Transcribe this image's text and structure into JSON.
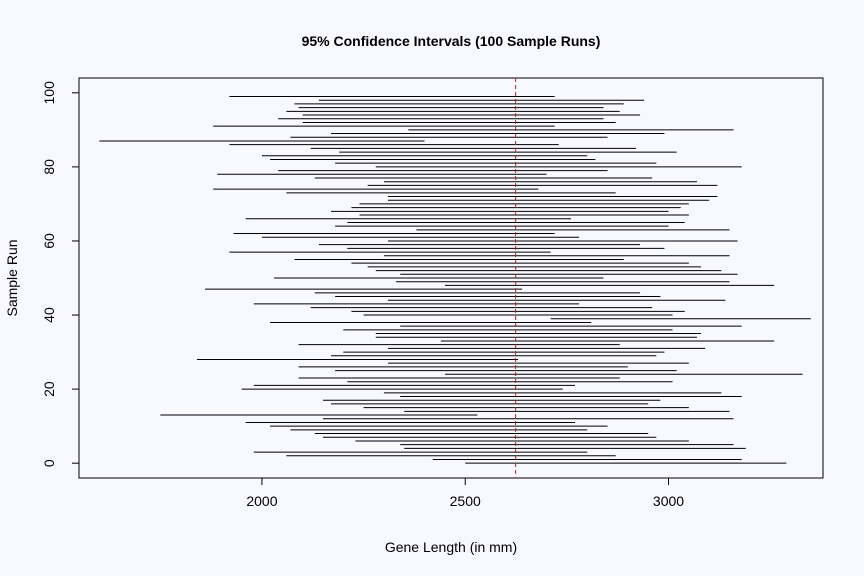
{
  "chart_data": {
    "type": "interval",
    "title": "95% Confidence Intervals (100 Sample Runs)",
    "xlabel": "Gene Length (in mm)",
    "ylabel": "Sample Run",
    "xlim": [
      1550,
      3380
    ],
    "ylim": [
      -4,
      104
    ],
    "xticks": [
      2000,
      2500,
      3000
    ],
    "yticks": [
      0,
      20,
      40,
      60,
      80,
      100
    ],
    "reference_line": {
      "x": 2624,
      "style": "dashed"
    },
    "grid": false,
    "colors": {
      "interval": "#000000",
      "reference": "#b22222",
      "background": "#f8f8ff"
    },
    "intervals": [
      [
        2500,
        3290
      ],
      [
        2420,
        3180
      ],
      [
        2060,
        2870
      ],
      [
        1980,
        2800
      ],
      [
        2350,
        3190
      ],
      [
        2340,
        3160
      ],
      [
        2230,
        3050
      ],
      [
        2150,
        2970
      ],
      [
        2130,
        2950
      ],
      [
        2070,
        2800
      ],
      [
        2020,
        2850
      ],
      [
        1960,
        2770
      ],
      [
        2150,
        3160
      ],
      [
        1750,
        2530
      ],
      [
        2350,
        3150
      ],
      [
        2250,
        3050
      ],
      [
        2170,
        2950
      ],
      [
        2150,
        2980
      ],
      [
        2340,
        3180
      ],
      [
        2300,
        3130
      ],
      [
        1950,
        2740
      ],
      [
        1980,
        2770
      ],
      [
        2210,
        3010
      ],
      [
        2090,
        2880
      ],
      [
        2450,
        3330
      ],
      [
        2180,
        3020
      ],
      [
        2090,
        2900
      ],
      [
        2310,
        3050
      ],
      [
        1840,
        2630
      ],
      [
        2170,
        2970
      ],
      [
        2200,
        2990
      ],
      [
        2310,
        3090
      ],
      [
        2090,
        2880
      ],
      [
        2440,
        3260
      ],
      [
        2280,
        3070
      ],
      [
        2280,
        3080
      ],
      [
        2200,
        3010
      ],
      [
        2340,
        3180
      ],
      [
        2020,
        2810
      ],
      [
        2710,
        3350
      ],
      [
        2250,
        3010
      ],
      [
        2220,
        3040
      ],
      [
        2120,
        2960
      ],
      [
        1980,
        2780
      ],
      [
        2310,
        3140
      ],
      [
        2180,
        2980
      ],
      [
        2130,
        2930
      ],
      [
        1860,
        2640
      ],
      [
        2450,
        3260
      ],
      [
        2330,
        3150
      ],
      [
        2030,
        2840
      ],
      [
        2340,
        3170
      ],
      [
        2280,
        3130
      ],
      [
        2260,
        3080
      ],
      [
        2220,
        3050
      ],
      [
        2080,
        2890
      ],
      [
        2300,
        3150
      ],
      [
        1920,
        2710
      ],
      [
        2210,
        2990
      ],
      [
        2140,
        2930
      ],
      [
        2310,
        3170
      ],
      [
        2000,
        2780
      ],
      [
        1930,
        2720
      ],
      [
        2380,
        3150
      ],
      [
        2180,
        3000
      ],
      [
        2210,
        3040
      ],
      [
        1960,
        2760
      ],
      [
        2240,
        3050
      ],
      [
        2170,
        3000
      ],
      [
        2220,
        3030
      ],
      [
        2240,
        3050
      ],
      [
        2310,
        3100
      ],
      [
        2310,
        3120
      ],
      [
        2060,
        2870
      ],
      [
        1880,
        2680
      ],
      [
        2260,
        3120
      ],
      [
        2300,
        3070
      ],
      [
        2130,
        2960
      ],
      [
        1890,
        2700
      ],
      [
        2040,
        2850
      ],
      [
        2280,
        3180
      ],
      [
        2180,
        2970
      ],
      [
        2020,
        2820
      ],
      [
        2000,
        2800
      ],
      [
        2190,
        3020
      ],
      [
        2120,
        2920
      ],
      [
        1920,
        2730
      ],
      [
        1600,
        2400
      ],
      [
        2070,
        2850
      ],
      [
        2170,
        2990
      ],
      [
        2360,
        3160
      ],
      [
        1880,
        2720
      ],
      [
        2100,
        2870
      ],
      [
        2040,
        2840
      ],
      [
        2100,
        2930
      ],
      [
        2060,
        2880
      ],
      [
        2090,
        2840
      ],
      [
        2080,
        2890
      ],
      [
        2140,
        2940
      ],
      [
        1920,
        2720
      ]
    ]
  }
}
